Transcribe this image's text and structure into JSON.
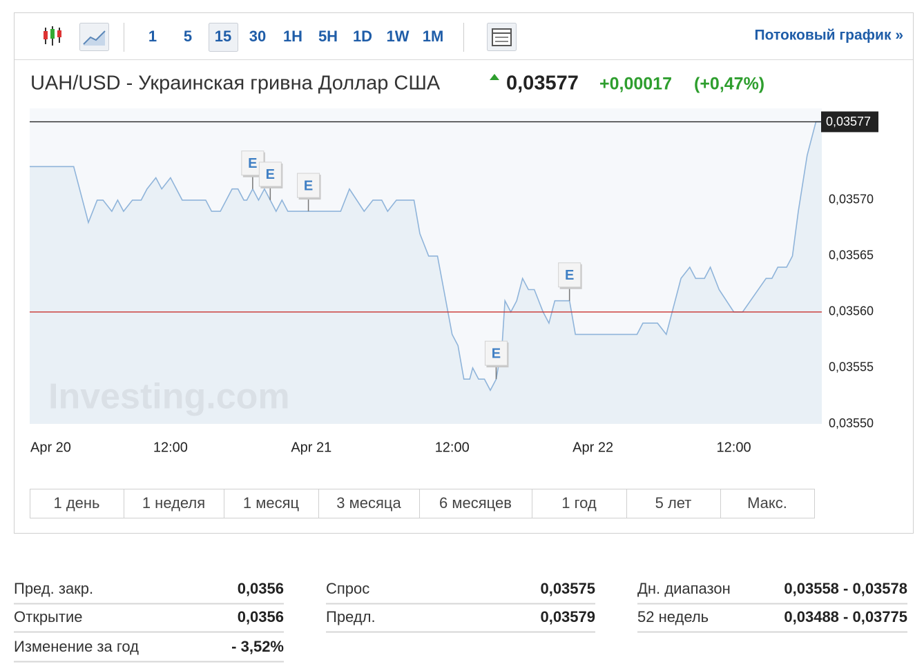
{
  "toolbar": {
    "intervals": [
      "1",
      "5",
      "15",
      "30",
      "1H",
      "5H",
      "1D",
      "1W",
      "1M"
    ],
    "selected_interval": 2,
    "streaming_link": "Потоковый график »"
  },
  "header": {
    "title": "UAH/USD - Украинская гривна Доллар США",
    "price": "0,03577",
    "change": "+0,00017",
    "change_percent": "(+0,47%)"
  },
  "chart_data": {
    "type": "area",
    "watermark": "Investing.com",
    "color": "#8fb4da",
    "fill": "#e6edf5",
    "x": [
      0,
      3.75,
      4.5,
      5,
      5.75,
      6.25,
      7,
      7.5,
      8,
      8.75,
      9.5,
      10,
      10.75,
      11.25,
      12,
      13,
      15,
      15.5,
      16.25,
      17.25,
      17.75,
      18.25,
      18.5,
      19,
      19.5,
      20,
      21,
      21.5,
      22,
      26.5,
      27.25,
      28.5,
      29.25,
      30,
      30.5,
      31.25,
      32.75,
      33.25,
      34,
      34.75,
      36,
      36.5,
      37,
      37.5,
      37.75,
      38.25,
      38.75,
      39.25,
      39.75,
      40.25,
      40.5,
      41,
      41.5,
      42,
      42.5,
      43,
      43.75,
      44.25,
      44.75,
      46,
      46.5,
      51.75,
      52.25,
      53.5,
      54.25,
      55,
      55.5,
      56.25,
      56.75,
      57.5,
      58,
      58.75,
      60,
      60.75,
      62.75,
      63.25,
      63.75,
      64.5,
      65,
      65.5,
      66.25,
      67,
      67.5
    ],
    "values": [
      0.03573,
      0.03573,
      0.0357,
      0.03568,
      0.0357,
      0.0357,
      0.03569,
      0.0357,
      0.03569,
      0.0357,
      0.0357,
      0.03571,
      0.03572,
      0.03571,
      0.03572,
      0.0357,
      0.0357,
      0.03569,
      0.03569,
      0.03571,
      0.03571,
      0.0357,
      0.0357,
      0.03571,
      0.0357,
      0.03571,
      0.03569,
      0.0357,
      0.03569,
      0.03569,
      0.03571,
      0.03569,
      0.0357,
      0.0357,
      0.03569,
      0.0357,
      0.0357,
      0.03567,
      0.03565,
      0.03565,
      0.03558,
      0.03557,
      0.03554,
      0.03554,
      0.03555,
      0.03554,
      0.03554,
      0.03553,
      0.03554,
      0.03557,
      0.03561,
      0.0356,
      0.03561,
      0.03563,
      0.03562,
      0.03562,
      0.0356,
      0.03559,
      0.03561,
      0.03561,
      0.03558,
      0.03558,
      0.03559,
      0.03559,
      0.03558,
      0.03561,
      0.03563,
      0.03564,
      0.03563,
      0.03563,
      0.03564,
      0.03562,
      0.0356,
      0.0356,
      0.03563,
      0.03563,
      0.03564,
      0.03564,
      0.03565,
      0.03569,
      0.03574,
      0.03577,
      0.03577
    ],
    "xlim": [
      0,
      67.5
    ],
    "xticks": [
      {
        "value": 0,
        "label": "Apr 20"
      },
      {
        "value": 12,
        "label": "12:00"
      },
      {
        "value": 24,
        "label": "Apr 21"
      },
      {
        "value": 36,
        "label": "12:00"
      },
      {
        "value": 48,
        "label": "Apr 22"
      },
      {
        "value": 60,
        "label": "12:00"
      }
    ],
    "ylim": [
      0.0355,
      0.035782
    ],
    "yticks": [
      {
        "value": 0.0355,
        "label": "0,03550"
      },
      {
        "value": 0.03555,
        "label": "0,03555"
      },
      {
        "value": 0.0356,
        "label": "0,03560"
      },
      {
        "value": 0.03565,
        "label": "0,03565"
      },
      {
        "value": 0.0357,
        "label": "0,03570"
      }
    ],
    "price_line": {
      "value": 0.03577,
      "label": "0,03577",
      "color": "#222222"
    },
    "prev_close_line": {
      "value": 0.0356,
      "color": "#c9302c"
    },
    "events": [
      {
        "x": 19,
        "label": "E"
      },
      {
        "x": 20.5,
        "label": "E"
      },
      {
        "x": 23.75,
        "label": "E"
      },
      {
        "x": 39.75,
        "label": "E"
      },
      {
        "x": 46,
        "label": "E"
      }
    ]
  },
  "ranges": [
    "1 день",
    "1 неделя",
    "1 месяц",
    "3 месяца",
    "6 месяцев",
    "1 год",
    "5 лет",
    "Макс."
  ],
  "stats": [
    [
      {
        "label": "Пред. закр.",
        "value": "0,0356"
      },
      {
        "label": "Открытие",
        "value": "0,0356"
      },
      {
        "label": "Изменение за год",
        "value": "- 3,52%"
      }
    ],
    [
      {
        "label": "Спрос",
        "value": "0,03575"
      },
      {
        "label": "Предл.",
        "value": "0,03579"
      }
    ],
    [
      {
        "label": "Дн. диапазон",
        "value": "0,03558 - 0,03578"
      },
      {
        "label": "52 недель",
        "value": "0,03488 - 0,03775"
      }
    ]
  ]
}
